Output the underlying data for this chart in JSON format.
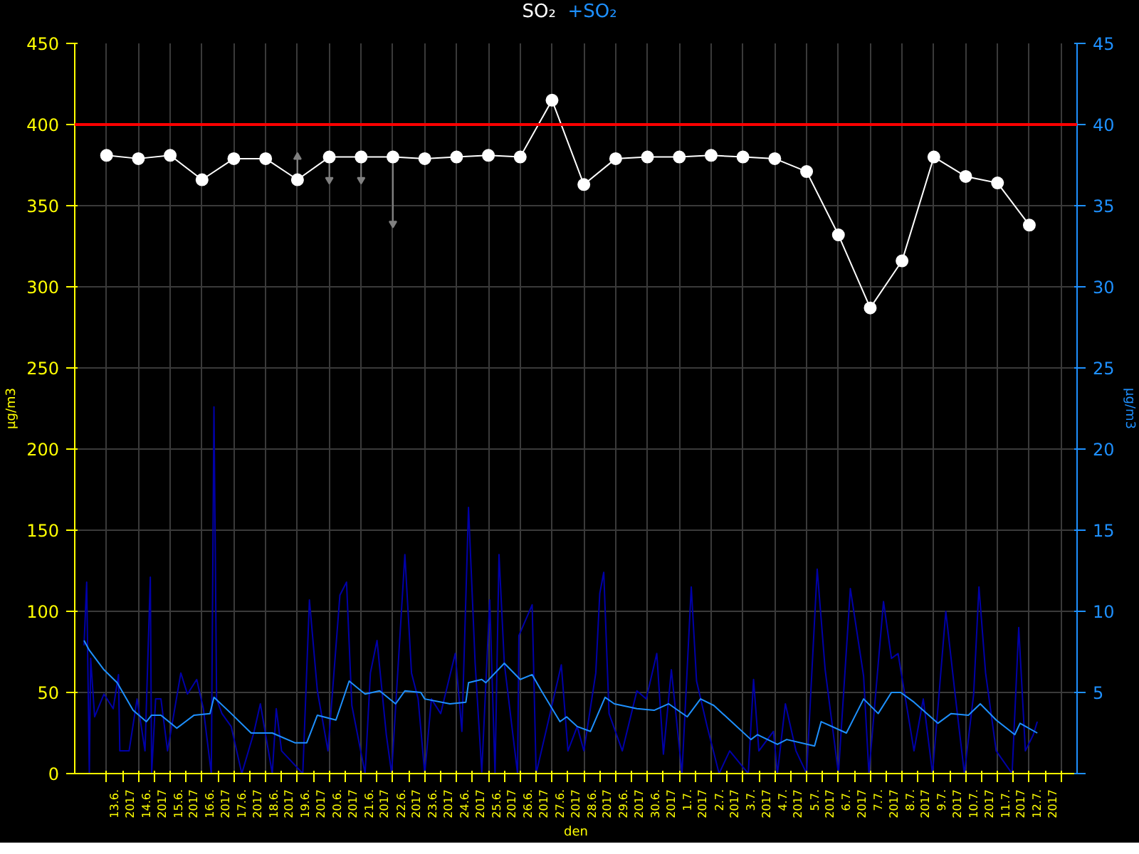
{
  "chart_data": {
    "type": "line",
    "legend": "top",
    "xlabel": "den",
    "ylabel": "µg/m3",
    "y2label": "µg/m3",
    "xlim": [
      "2017-06-12",
      "2017-07-13T12:00"
    ],
    "ylim": [
      0,
      450
    ],
    "y2lim": [
      0,
      45
    ],
    "yticks": [
      0,
      50,
      100,
      150,
      200,
      250,
      300,
      350,
      400,
      450
    ],
    "y2ticks": [
      {
        "value": 0,
        "label": null
      },
      5,
      10,
      15,
      20,
      25,
      30,
      35,
      40,
      45
    ],
    "xticks": [
      {
        "value": "2017-06-13",
        "label": null
      },
      {
        "value": "2017-06-14",
        "label": null
      },
      {
        "value": "2017-06-15",
        "label": null
      },
      {
        "value": "2017-06-16",
        "label": null
      },
      {
        "value": "2017-06-17",
        "label": null
      },
      {
        "value": "2017-06-18",
        "label": null
      },
      {
        "value": "2017-06-19",
        "label": null
      },
      {
        "value": "2017-06-20",
        "label": null
      },
      {
        "value": "2017-06-21",
        "label": null
      },
      {
        "value": "2017-06-22",
        "label": null
      },
      {
        "value": "2017-06-23",
        "label": null
      },
      {
        "value": "2017-06-24",
        "label": null
      },
      {
        "value": "2017-06-25",
        "label": null
      },
      {
        "value": "2017-06-26",
        "label": null
      },
      {
        "value": "2017-06-27",
        "label": null
      },
      {
        "value": "2017-06-28",
        "label": null
      },
      {
        "value": "2017-06-29",
        "label": null
      },
      {
        "value": "2017-06-30",
        "label": null
      },
      {
        "value": "2017-07-01",
        "label": null
      },
      {
        "value": "2017-07-02",
        "label": null
      },
      {
        "value": "2017-07-03",
        "label": null
      },
      {
        "value": "2017-07-04",
        "label": null
      },
      {
        "value": "2017-07-05",
        "label": null
      },
      {
        "value": "2017-07-06",
        "label": null
      },
      {
        "value": "2017-07-07",
        "label": null
      },
      {
        "value": "2017-07-08",
        "label": null
      },
      {
        "value": "2017-07-09",
        "label": null
      },
      {
        "value": "2017-07-10",
        "label": null
      },
      {
        "value": "2017-07-11",
        "label": null
      },
      {
        "value": "2017-07-12",
        "label": null
      },
      {
        "value": "2017-07-13",
        "label": null
      },
      {
        "value": "2017-06-13T12:00",
        "label": "13.6.\n2017"
      },
      {
        "value": "2017-06-14T12:00",
        "label": "14.6.\n2017"
      },
      {
        "value": "2017-06-15T12:00",
        "label": "15.6.\n2017"
      },
      {
        "value": "2017-06-16T12:00",
        "label": "16.6.\n2017"
      },
      {
        "value": "2017-06-17T12:00",
        "label": "17.6.\n2017"
      },
      {
        "value": "2017-06-18T12:00",
        "label": "18.6.\n2017"
      },
      {
        "value": "2017-06-19T12:00",
        "label": "19.6.\n2017"
      },
      {
        "value": "2017-06-20T12:00",
        "label": "20.6.\n2017"
      },
      {
        "value": "2017-06-21T12:00",
        "label": "21.6.\n2017"
      },
      {
        "value": "2017-06-22T12:00",
        "label": "22.6.\n2017"
      },
      {
        "value": "2017-06-23T12:00",
        "label": "23.6.\n2017"
      },
      {
        "value": "2017-06-24T12:00",
        "label": "24.6.\n2017"
      },
      {
        "value": "2017-06-25T12:00",
        "label": "25.6.\n2017"
      },
      {
        "value": "2017-06-26T12:00",
        "label": "26.6.\n2017"
      },
      {
        "value": "2017-06-27T12:00",
        "label": "27.6.\n2017"
      },
      {
        "value": "2017-06-28T12:00",
        "label": "28.6.\n2017"
      },
      {
        "value": "2017-06-29T12:00",
        "label": "29.6.\n2017"
      },
      {
        "value": "2017-06-30T12:00",
        "label": "30.6.\n2017"
      },
      {
        "value": "2017-07-01T12:00",
        "label": "1.7.\n2017"
      },
      {
        "value": "2017-07-02T12:00",
        "label": "2.7.\n2017"
      },
      {
        "value": "2017-07-03T12:00",
        "label": "3.7.\n2017"
      },
      {
        "value": "2017-07-04T12:00",
        "label": "4.7.\n2017"
      },
      {
        "value": "2017-07-05T12:00",
        "label": "5.7.\n2017"
      },
      {
        "value": "2017-07-06T12:00",
        "label": "6.7.\n2017"
      },
      {
        "value": "2017-07-07T12:00",
        "label": "7.7.\n2017"
      },
      {
        "value": "2017-07-08T12:00",
        "label": "8.7.\n2017"
      },
      {
        "value": "2017-07-09T12:00",
        "label": "9.7.\n2017"
      },
      {
        "value": "2017-07-10T12:00",
        "label": "10.7.\n2017"
      },
      {
        "value": "2017-07-11T12:00",
        "label": "11.7.\n2017"
      },
      {
        "value": "2017-07-12T12:00",
        "label": "12.7.\n2017"
      }
    ],
    "grid": true,
    "ref_lines": [
      {
        "axis": "y",
        "value": 400,
        "color": "#ff0000"
      }
    ],
    "series": [
      {
        "axis": "y2",
        "color": "#0000a8",
        "x": [
          "2017-06-12T07:00",
          "2017-06-12T09:00",
          "2017-06-12T11:00",
          "2017-06-12T12:00",
          "2017-06-12T15:00",
          "2017-06-12T22:00",
          "2017-06-13T05:00",
          "2017-06-13T09:00",
          "2017-06-13T10:00",
          "2017-06-13T17:00",
          "2017-06-13T23:00",
          "2017-06-14T05:00",
          "2017-06-14T09:00",
          "2017-06-14T10:00",
          "2017-06-14T13:00",
          "2017-06-14T17:00",
          "2017-06-14T22:00",
          "2017-06-15T08:00",
          "2017-06-15T13:00",
          "2017-06-15T20:00",
          "2017-06-16T01:00",
          "2017-06-16T07:00",
          "2017-06-16T09:00",
          "2017-06-16T11:00",
          "2017-06-16T15:00",
          "2017-06-16T22:00",
          "2017-06-17T06:00",
          "2017-06-17T15:00",
          "2017-06-17T20:00",
          "2017-06-18T05:00",
          "2017-06-18T08:00",
          "2017-06-18T12:00",
          "2017-06-19T04:00",
          "2017-06-19T09:00",
          "2017-06-19T15:00",
          "2017-06-19T23:00",
          "2017-06-20T08:00",
          "2017-06-20T13:00",
          "2017-06-20T17:00",
          "2017-06-21T03:00",
          "2017-06-21T07:00",
          "2017-06-21T12:00",
          "2017-06-21T19:00",
          "2017-06-21T23:00",
          "2017-06-22T09:00",
          "2017-06-22T14:00",
          "2017-06-22T19:00",
          "2017-06-23T00:00",
          "2017-06-23T05:00",
          "2017-06-23T12:00",
          "2017-06-23T23:00",
          "2017-06-24T04:00",
          "2017-06-24T09:00",
          "2017-06-24T14:00",
          "2017-06-24T19:00",
          "2017-06-25T01:00",
          "2017-06-25T05:00",
          "2017-06-25T08:00",
          "2017-06-25T12:00",
          "2017-06-25T22:00",
          "2017-06-25T23:00",
          "2017-06-26T09:00",
          "2017-06-26T12:00",
          "2017-06-26T16:00",
          "2017-06-27T07:00",
          "2017-06-27T12:00",
          "2017-06-27T19:00",
          "2017-06-28T00:00",
          "2017-06-28T09:00",
          "2017-06-28T12:00",
          "2017-06-28T15:00",
          "2017-06-28T19:00",
          "2017-06-29T05:00",
          "2017-06-29T16:00",
          "2017-06-29T23:00",
          "2017-06-30T07:00",
          "2017-06-30T12:00",
          "2017-06-30T18:00",
          "2017-07-01T02:00",
          "2017-07-01T09:00",
          "2017-07-01T13:00",
          "2017-07-01T21:00",
          "2017-07-02T06:00",
          "2017-07-02T14:00",
          "2017-07-03T04:00",
          "2017-07-03T08:00",
          "2017-07-03T12:00",
          "2017-07-03T23:00",
          "2017-07-04T02:00",
          "2017-07-04T08:00",
          "2017-07-04T16:00",
          "2017-07-05T00:00",
          "2017-07-05T08:00",
          "2017-07-05T14:00",
          "2017-07-06T00:00",
          "2017-07-06T09:00",
          "2017-07-06T19:00",
          "2017-07-06T23:00",
          "2017-07-07T10:00",
          "2017-07-07T16:00",
          "2017-07-07T21:00",
          "2017-07-08T09:00",
          "2017-07-08T16:00",
          "2017-07-08T23:00",
          "2017-07-09T09:00",
          "2017-07-09T16:00",
          "2017-07-09T23:00",
          "2017-07-10T06:00",
          "2017-07-10T10:00",
          "2017-07-10T15:00",
          "2017-07-10T23:00",
          "2017-07-11T11:00",
          "2017-07-11T16:00",
          "2017-07-11T21:00",
          "2017-07-12T03:00",
          "2017-07-12T06:00"
        ],
        "values": [
          7.9,
          11.8,
          0,
          7.1,
          3.5,
          4.9,
          4.0,
          6.1,
          1.4,
          1.4,
          4.6,
          1.4,
          12.1,
          0,
          4.6,
          4.6,
          1.4,
          6.2,
          4.9,
          5.8,
          4.0,
          0,
          22.6,
          4.6,
          3.7,
          2.9,
          0,
          2.5,
          4.3,
          0,
          4.0,
          1.4,
          0,
          10.7,
          5.1,
          1.4,
          11.0,
          11.8,
          4.2,
          0,
          6.2,
          8.2,
          2.4,
          0,
          13.5,
          6.2,
          4.6,
          0,
          4.6,
          3.7,
          7.4,
          2.6,
          16.4,
          6.8,
          0.1,
          10.7,
          0,
          13.5,
          6.8,
          0,
          8.5,
          10.4,
          0,
          1.4,
          6.7,
          1.4,
          2.9,
          1.4,
          6.2,
          11.1,
          12.4,
          3.7,
          1.4,
          5.1,
          4.6,
          7.4,
          1.2,
          6.4,
          0,
          11.5,
          5.7,
          2.9,
          0,
          1.4,
          0,
          5.8,
          1.4,
          2.6,
          0,
          4.3,
          1.4,
          0,
          12.6,
          6.4,
          0,
          11.4,
          6.0,
          0,
          10.6,
          7.1,
          7.4,
          1.4,
          4.6,
          0,
          10.0,
          4.9,
          0,
          4.9,
          11.5,
          6.2,
          1.4,
          0,
          9.0,
          1.4,
          2.4,
          3.2
        ]
      },
      {
        "axis": "y2",
        "name": "+SO₂",
        "color": "#1e90ff",
        "x": [
          "2017-06-12T07:00",
          "2017-06-12T11:00",
          "2017-06-12T22:00",
          "2017-06-13T08:00",
          "2017-06-13T20:00",
          "2017-06-14T06:00",
          "2017-06-14T10:00",
          "2017-06-14T17:00",
          "2017-06-15T05:00",
          "2017-06-15T18:00",
          "2017-06-16T06:00",
          "2017-06-16T09:00",
          "2017-06-16T22:00",
          "2017-06-17T13:00",
          "2017-06-18T05:00",
          "2017-06-18T22:00",
          "2017-06-19T07:00",
          "2017-06-19T15:00",
          "2017-06-20T05:00",
          "2017-06-20T15:00",
          "2017-06-21T03:00",
          "2017-06-21T14:00",
          "2017-06-22T02:00",
          "2017-06-22T09:00",
          "2017-06-22T21:00",
          "2017-06-23T00:00",
          "2017-06-23T19:00",
          "2017-06-24T07:00",
          "2017-06-24T09:00",
          "2017-06-24T19:00",
          "2017-06-24T22:00",
          "2017-06-25T12:00",
          "2017-06-26T00:00",
          "2017-06-26T09:00",
          "2017-06-26T16:00",
          "2017-06-27T06:00",
          "2017-06-27T11:00",
          "2017-06-27T19:00",
          "2017-06-28T05:00",
          "2017-06-28T16:00",
          "2017-06-28T23:00",
          "2017-06-29T16:00",
          "2017-06-30T05:00",
          "2017-06-30T16:00",
          "2017-07-01T06:00",
          "2017-07-01T16:00",
          "2017-07-02T02:00",
          "2017-07-03T06:00",
          "2017-07-03T11:00",
          "2017-07-04T02:00",
          "2017-07-04T09:00",
          "2017-07-05T06:00",
          "2017-07-05T11:00",
          "2017-07-06T06:00",
          "2017-07-06T19:00",
          "2017-07-07T06:00",
          "2017-07-07T16:00",
          "2017-07-07T23:00",
          "2017-07-08T09:00",
          "2017-07-09T03:00",
          "2017-07-09T13:00",
          "2017-07-10T02:00",
          "2017-07-10T11:00",
          "2017-07-10T23:00",
          "2017-07-11T13:00",
          "2017-07-11T17:00",
          "2017-07-12T06:00"
        ],
        "values": [
          8.2,
          7.6,
          6.4,
          5.6,
          3.9,
          3.2,
          3.6,
          3.6,
          2.8,
          3.6,
          3.7,
          4.7,
          3.7,
          2.5,
          2.5,
          1.9,
          1.9,
          3.6,
          3.3,
          5.7,
          4.9,
          5.1,
          4.3,
          5.1,
          5.0,
          4.6,
          4.3,
          4.4,
          5.6,
          5.8,
          5.6,
          6.8,
          5.8,
          6.1,
          5.1,
          3.2,
          3.5,
          2.9,
          2.6,
          4.7,
          4.3,
          4.0,
          3.9,
          4.3,
          3.5,
          4.6,
          4.2,
          2.1,
          2.4,
          1.8,
          2.1,
          1.7,
          3.2,
          2.5,
          4.6,
          3.7,
          5.0,
          5.0,
          4.4,
          3.1,
          3.7,
          3.6,
          4.3,
          3.3,
          2.4,
          3.1,
          2.5
        ]
      },
      {
        "name": "SO₂",
        "color": "#ffffff",
        "marker": "circle",
        "x": [
          "2017-06-13",
          "2017-06-14",
          "2017-06-15",
          "2017-06-16",
          "2017-06-17",
          "2017-06-18",
          "2017-06-19",
          "2017-06-20",
          "2017-06-21",
          "2017-06-22",
          "2017-06-23",
          "2017-06-24",
          "2017-06-25",
          "2017-06-26",
          "2017-06-27",
          "2017-06-28",
          "2017-06-29",
          "2017-06-30",
          "2017-07-01",
          "2017-07-02",
          "2017-07-03",
          "2017-07-04",
          "2017-07-05",
          "2017-07-06",
          "2017-07-07",
          "2017-07-08",
          "2017-07-09",
          "2017-07-10",
          "2017-07-11",
          "2017-07-12"
        ],
        "values": [
          381,
          379,
          381,
          366,
          379,
          379,
          366,
          380,
          380,
          380,
          379,
          380,
          381,
          380,
          415,
          363,
          379,
          380,
          380,
          381,
          380,
          379,
          371,
          332,
          287,
          316,
          380,
          368,
          364,
          338
        ],
        "errors": [
          null,
          null,
          null,
          null,
          null,
          null,
          [
            366,
            380
          ],
          [
            366,
            380
          ],
          [
            366,
            380
          ],
          [
            339,
            380
          ],
          null,
          null,
          null,
          null,
          null,
          null,
          null,
          null,
          null,
          null,
          null,
          null,
          null,
          null,
          null,
          null,
          null,
          null,
          null,
          null
        ]
      }
    ]
  }
}
